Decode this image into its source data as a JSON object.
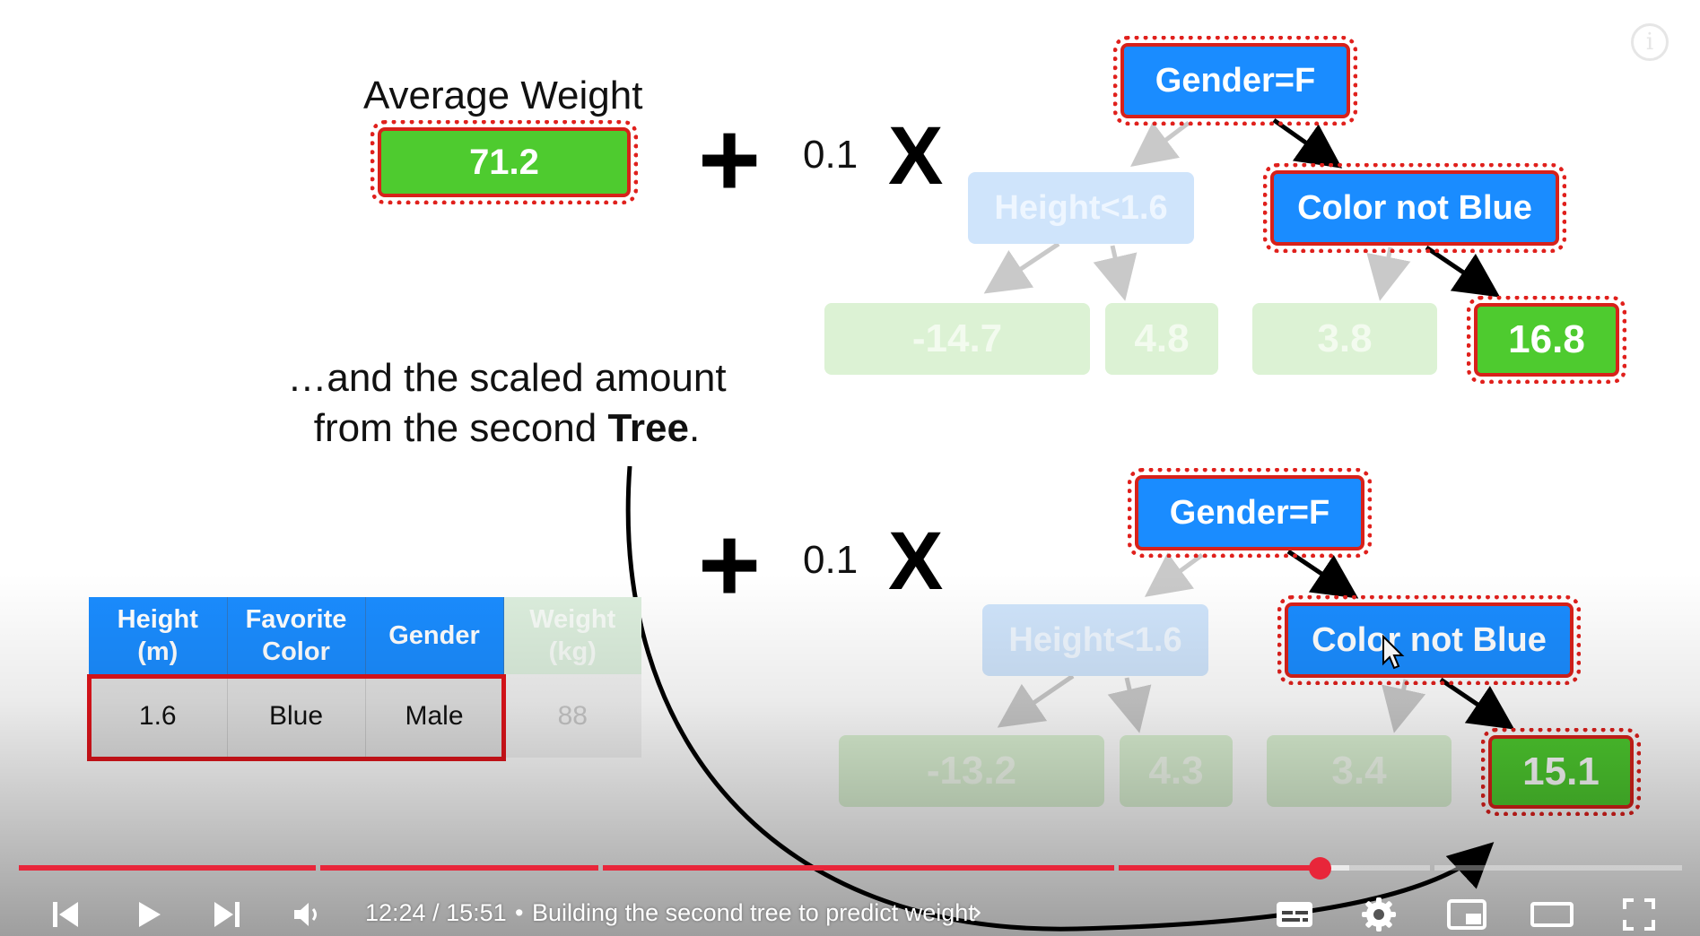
{
  "slide": {
    "average_label": "Average Weight",
    "average_value": "71.2",
    "plus_symbol": "+",
    "times_symbol": "X",
    "learning_rate": "0.1",
    "caption_line1": "…and the scaled amount",
    "caption_line2_prefix": "from the second ",
    "caption_line2_bold": "Tree",
    "caption_line2_suffix": "."
  },
  "tree1": {
    "root": "Gender=F",
    "left_split": "Height<1.6",
    "right_split": "Color not Blue",
    "leaves": [
      "-14.7",
      "4.8",
      "3.8",
      "16.8"
    ]
  },
  "tree2": {
    "root": "Gender=F",
    "left_split": "Height<1.6",
    "right_split": "Color not Blue",
    "leaves": [
      "-13.2",
      "4.3",
      "3.4",
      "15.1"
    ]
  },
  "table": {
    "headers": [
      [
        "Height",
        "(m)"
      ],
      [
        "Favorite",
        "Color"
      ],
      [
        "Gender",
        ""
      ],
      [
        "Weight",
        "(kg)"
      ]
    ],
    "row": [
      "1.6",
      "Blue",
      "Male",
      "88"
    ]
  },
  "player": {
    "time_display": "12:24 / 15:51",
    "separator": "•",
    "chapter_title": "Building the second tree to predict weight",
    "chapter_chevron": "›",
    "info_glyph": "i",
    "progress_fraction": 0.782,
    "buffered_fraction": 0.8,
    "chapter_boundaries": [
      0.18,
      0.35,
      0.66,
      0.85
    ],
    "accent_color": "#e8263a",
    "icons": [
      "previous-icon",
      "play-icon",
      "next-icon",
      "volume-icon",
      "subtitles-icon",
      "settings-icon",
      "miniplayer-icon",
      "theater-mode-icon",
      "fullscreen-icon"
    ]
  }
}
